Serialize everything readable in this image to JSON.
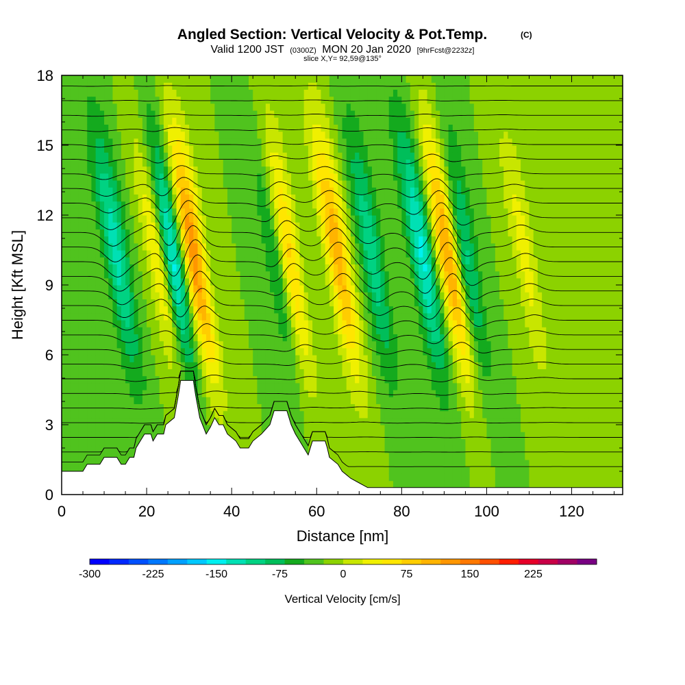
{
  "title": {
    "main": "Angled Section: Vertical Velocity & Pot.Temp.",
    "main_unit": "(C)",
    "valid_a": "Valid 1200 JST",
    "valid_z": "(0300Z)",
    "valid_b": "MON 20 Jan 2020",
    "fcst": "[9hrFcst@2232z]",
    "slice": "slice X,Y= 92,59@135°"
  },
  "chart_data": {
    "type": "heatmap",
    "xlabel": "Distance [nm]",
    "ylabel": "Height [Kft MSL]",
    "xlim": [
      0,
      132
    ],
    "ylim": [
      0,
      18
    ],
    "x_ticks": [
      0,
      20,
      40,
      60,
      80,
      100,
      120
    ],
    "y_ticks": [
      0,
      3,
      6,
      9,
      12,
      15,
      18
    ],
    "colorbar": {
      "label": "Vertical Velocity [cm/s]",
      "tick_labels": [
        "-300",
        "-225",
        "-150",
        "-75",
        "0",
        "75",
        "150",
        "225"
      ],
      "tick_values": [
        -300,
        -225,
        -150,
        -75,
        0,
        75,
        150,
        225
      ],
      "range": [
        -300,
        300
      ],
      "step": 25,
      "colors": [
        "#0000ff",
        "#0028ff",
        "#0050ff",
        "#0078ff",
        "#00a0ff",
        "#00c8ff",
        "#00f0f0",
        "#00e0b4",
        "#00d282",
        "#00be5a",
        "#14aa1e",
        "#50c31e",
        "#8cd200",
        "#c8e600",
        "#f0f000",
        "#ffe600",
        "#ffcd00",
        "#ffb400",
        "#ff9600",
        "#ff7800",
        "#ff5000",
        "#ff1e00",
        "#e60028",
        "#c80046",
        "#a00064",
        "#780082"
      ]
    },
    "terrain_kft": [
      [
        0,
        1.0
      ],
      [
        5,
        1.0
      ],
      [
        6,
        1.3
      ],
      [
        9,
        1.3
      ],
      [
        10,
        1.6
      ],
      [
        13,
        1.6
      ],
      [
        14,
        1.3
      ],
      [
        15,
        1.3
      ],
      [
        16,
        1.6
      ],
      [
        17,
        1.6
      ],
      [
        17.5,
        2.0
      ],
      [
        18.5,
        2.3
      ],
      [
        19.5,
        2.6
      ],
      [
        21,
        2.6
      ],
      [
        21.5,
        2.3
      ],
      [
        22.5,
        2.6
      ],
      [
        24,
        2.6
      ],
      [
        24.5,
        3.0
      ],
      [
        26.5,
        3.3
      ],
      [
        27.5,
        4.3
      ],
      [
        28,
        4.9
      ],
      [
        31,
        4.9
      ],
      [
        31.5,
        4.3
      ],
      [
        32.5,
        3.3
      ],
      [
        34,
        2.6
      ],
      [
        35,
        2.9
      ],
      [
        36,
        3.3
      ],
      [
        37,
        3.0
      ],
      [
        38,
        3.0
      ],
      [
        39,
        2.6
      ],
      [
        41,
        2.3
      ],
      [
        42,
        2.0
      ],
      [
        44,
        2.0
      ],
      [
        45,
        2.3
      ],
      [
        47,
        2.6
      ],
      [
        49,
        3.0
      ],
      [
        50,
        3.6
      ],
      [
        53,
        3.6
      ],
      [
        54,
        3.0
      ],
      [
        55,
        2.6
      ],
      [
        56,
        2.3
      ],
      [
        57,
        2.0
      ],
      [
        58,
        1.7
      ],
      [
        59,
        2.3
      ],
      [
        60,
        2.3
      ],
      [
        62,
        2.3
      ],
      [
        62.5,
        2.0
      ],
      [
        63,
        1.6
      ],
      [
        65,
        1.3
      ],
      [
        66,
        1.0
      ],
      [
        68,
        0.7
      ],
      [
        70,
        0.5
      ],
      [
        72,
        0.3
      ],
      [
        132,
        0.3
      ]
    ],
    "updraft_bands": [
      {
        "x_nm": 24,
        "peak_cms": 100,
        "sign": "up"
      },
      {
        "x_nm": 32,
        "peak_cms": 170,
        "sign": "up"
      },
      {
        "x_nm": 54,
        "peak_cms": 150,
        "sign": "up"
      },
      {
        "x_nm": 66,
        "peak_cms": 140,
        "sign": "up"
      },
      {
        "x_nm": 92,
        "peak_cms": 160,
        "sign": "up"
      },
      {
        "x_nm": 110,
        "peak_cms": 60,
        "sign": "up"
      }
    ],
    "downdraft_bands": [
      {
        "x_nm": 14,
        "peak_cms": -110,
        "sign": "down"
      },
      {
        "x_nm": 27,
        "peak_cms": -160,
        "sign": "down"
      },
      {
        "x_nm": 52,
        "peak_cms": -100,
        "sign": "down"
      },
      {
        "x_nm": 74,
        "peak_cms": -90,
        "sign": "down"
      },
      {
        "x_nm": 86,
        "peak_cms": -130,
        "sign": "down"
      },
      {
        "x_nm": 96,
        "peak_cms": -90,
        "sign": "down"
      }
    ],
    "isentrope_count": 28,
    "isentrope_labels_note": "small labelled isentropes (potential temperature, °C) on black contour lines"
  }
}
